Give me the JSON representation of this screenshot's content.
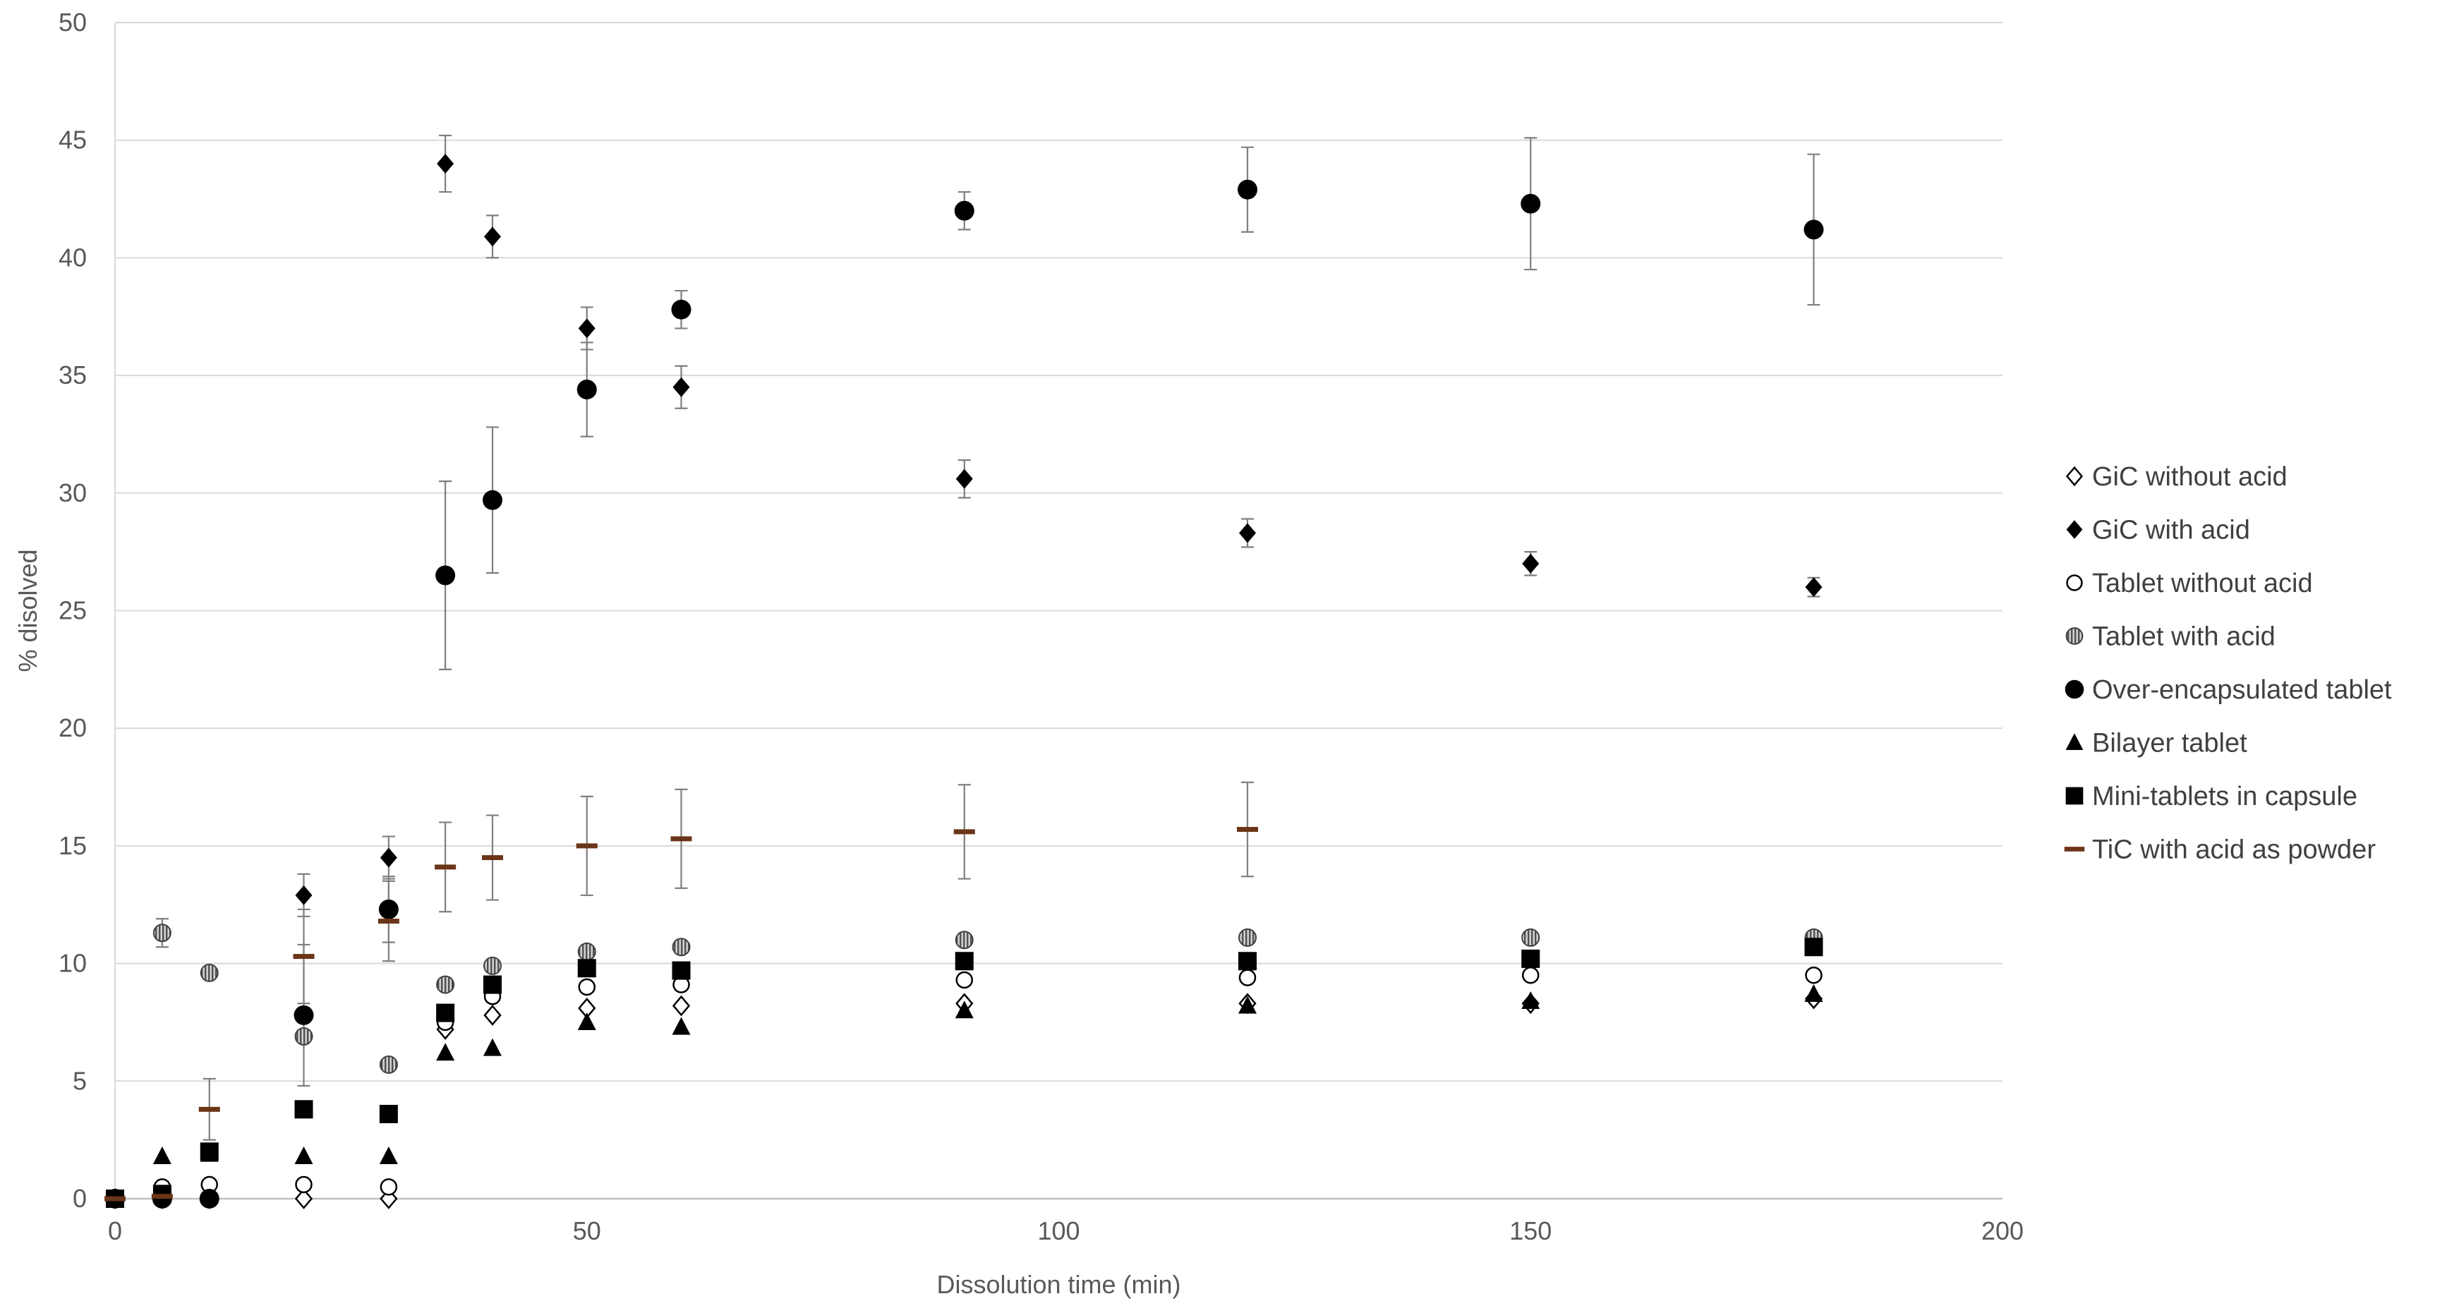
{
  "chart_data": {
    "type": "scatter",
    "title": "",
    "xlabel": "Dissolution time (min)",
    "ylabel": "% disolved",
    "xlim": [
      0,
      200
    ],
    "ylim": [
      0,
      50
    ],
    "x_ticks": [
      0,
      50,
      100,
      150,
      200
    ],
    "y_ticks": [
      0,
      5,
      10,
      15,
      20,
      25,
      30,
      35,
      40,
      45,
      50
    ],
    "grid": "horizontal",
    "legend_position": "right",
    "error_bars": true,
    "series": [
      {
        "name": "GiC without acid",
        "marker": "diamond-open",
        "color": "#000000",
        "points": [
          {
            "x": 0,
            "y": 0
          },
          {
            "x": 5,
            "y": 0
          },
          {
            "x": 10,
            "y": 0
          },
          {
            "x": 20,
            "y": 0
          },
          {
            "x": 29,
            "y": 0
          },
          {
            "x": 35,
            "y": 7.2
          },
          {
            "x": 40,
            "y": 7.8
          },
          {
            "x": 50,
            "y": 8.1
          },
          {
            "x": 60,
            "y": 8.2
          },
          {
            "x": 90,
            "y": 8.3
          },
          {
            "x": 120,
            "y": 8.3
          },
          {
            "x": 150,
            "y": 8.3
          },
          {
            "x": 180,
            "y": 8.5
          }
        ]
      },
      {
        "name": "GiC with acid",
        "marker": "diamond-filled",
        "color": "#000000",
        "points": [
          {
            "x": 0,
            "y": 0
          },
          {
            "x": 5,
            "y": 0.1
          },
          {
            "x": 10,
            "y": 0.2
          },
          {
            "x": 20,
            "y": 12.9,
            "err": 0.9
          },
          {
            "x": 29,
            "y": 14.5,
            "err": 0.9
          },
          {
            "x": 35,
            "y": 44.0,
            "err": 1.2
          },
          {
            "x": 40,
            "y": 40.9,
            "err": 0.9
          },
          {
            "x": 50,
            "y": 37.0,
            "err": 0.9
          },
          {
            "x": 60,
            "y": 34.5,
            "err": 0.9
          },
          {
            "x": 90,
            "y": 30.6,
            "err": 0.8
          },
          {
            "x": 120,
            "y": 28.3,
            "err": 0.6
          },
          {
            "x": 150,
            "y": 27.0,
            "err": 0.5
          },
          {
            "x": 180,
            "y": 26.0,
            "err": 0.4
          }
        ]
      },
      {
        "name": "Tablet without acid",
        "marker": "circle-open",
        "color": "#000000",
        "points": [
          {
            "x": 0,
            "y": 0
          },
          {
            "x": 5,
            "y": 0.5
          },
          {
            "x": 10,
            "y": 0.6
          },
          {
            "x": 20,
            "y": 0.6
          },
          {
            "x": 29,
            "y": 0.5
          },
          {
            "x": 35,
            "y": 7.5
          },
          {
            "x": 40,
            "y": 8.6
          },
          {
            "x": 50,
            "y": 9.0
          },
          {
            "x": 60,
            "y": 9.1
          },
          {
            "x": 90,
            "y": 9.3
          },
          {
            "x": 120,
            "y": 9.4
          },
          {
            "x": 150,
            "y": 9.5
          },
          {
            "x": 180,
            "y": 9.5
          }
        ]
      },
      {
        "name": "Tablet with acid",
        "marker": "circle-striped",
        "color": "#808080",
        "points": [
          {
            "x": 0,
            "y": 0
          },
          {
            "x": 5,
            "y": 11.3,
            "err": 0.6
          },
          {
            "x": 10,
            "y": 9.6
          },
          {
            "x": 20,
            "y": 6.9
          },
          {
            "x": 29,
            "y": 5.7
          },
          {
            "x": 35,
            "y": 9.1
          },
          {
            "x": 40,
            "y": 9.9
          },
          {
            "x": 50,
            "y": 10.5
          },
          {
            "x": 60,
            "y": 10.7
          },
          {
            "x": 90,
            "y": 11.0
          },
          {
            "x": 120,
            "y": 11.1
          },
          {
            "x": 150,
            "y": 11.1
          },
          {
            "x": 180,
            "y": 11.1
          }
        ]
      },
      {
        "name": "Over-encapsulated tablet",
        "marker": "circle-filled",
        "color": "#000000",
        "points": [
          {
            "x": 0,
            "y": 0
          },
          {
            "x": 5,
            "y": 0
          },
          {
            "x": 10,
            "y": 0
          },
          {
            "x": 20,
            "y": 7.8,
            "err": 3.0
          },
          {
            "x": 29,
            "y": 12.3,
            "err": 1.4
          },
          {
            "x": 35,
            "y": 26.5,
            "err": 4.0
          },
          {
            "x": 40,
            "y": 29.7,
            "err": 3.1
          },
          {
            "x": 50,
            "y": 34.4,
            "err": 2.0
          },
          {
            "x": 60,
            "y": 37.8,
            "err": 0.8
          },
          {
            "x": 90,
            "y": 42.0,
            "err": 0.8
          },
          {
            "x": 120,
            "y": 42.9,
            "err": 1.8
          },
          {
            "x": 150,
            "y": 42.3,
            "err": 2.8
          },
          {
            "x": 180,
            "y": 41.2,
            "err": 3.2
          }
        ]
      },
      {
        "name": "Bilayer tablet",
        "marker": "triangle-filled",
        "color": "#000000",
        "points": [
          {
            "x": 0,
            "y": 0
          },
          {
            "x": 5,
            "y": 1.8
          },
          {
            "x": 10,
            "y": 1.9
          },
          {
            "x": 20,
            "y": 1.8
          },
          {
            "x": 29,
            "y": 1.8
          },
          {
            "x": 35,
            "y": 6.2
          },
          {
            "x": 40,
            "y": 6.4
          },
          {
            "x": 50,
            "y": 7.5
          },
          {
            "x": 60,
            "y": 7.3
          },
          {
            "x": 90,
            "y": 8.0
          },
          {
            "x": 120,
            "y": 8.2
          },
          {
            "x": 150,
            "y": 8.4
          },
          {
            "x": 180,
            "y": 8.7
          }
        ]
      },
      {
        "name": "Mini-tablets in capsule",
        "marker": "square-filled",
        "color": "#000000",
        "points": [
          {
            "x": 0,
            "y": 0
          },
          {
            "x": 5,
            "y": 0.2
          },
          {
            "x": 10,
            "y": 2.0
          },
          {
            "x": 20,
            "y": 3.8
          },
          {
            "x": 29,
            "y": 3.6
          },
          {
            "x": 35,
            "y": 7.9
          },
          {
            "x": 40,
            "y": 9.1
          },
          {
            "x": 50,
            "y": 9.8
          },
          {
            "x": 60,
            "y": 9.7
          },
          {
            "x": 90,
            "y": 10.1
          },
          {
            "x": 120,
            "y": 10.1
          },
          {
            "x": 150,
            "y": 10.2
          },
          {
            "x": 180,
            "y": 10.7
          }
        ]
      },
      {
        "name": "TiC with acid as powder",
        "marker": "dash",
        "color": "#6b3518",
        "points": [
          {
            "x": 0,
            "y": 0
          },
          {
            "x": 5,
            "y": 0.1
          },
          {
            "x": 10,
            "y": 3.8,
            "err": 1.3
          },
          {
            "x": 20,
            "y": 10.3,
            "err": 2.0
          },
          {
            "x": 29,
            "y": 11.8,
            "err": 1.7
          },
          {
            "x": 35,
            "y": 14.1,
            "err": 1.9
          },
          {
            "x": 40,
            "y": 14.5,
            "err": 1.8
          },
          {
            "x": 50,
            "y": 15.0,
            "err": 2.1
          },
          {
            "x": 60,
            "y": 15.3,
            "err": 2.1
          },
          {
            "x": 90,
            "y": 15.6,
            "err": 2.0
          },
          {
            "x": 120,
            "y": 15.7,
            "err": 2.0
          }
        ]
      }
    ]
  }
}
